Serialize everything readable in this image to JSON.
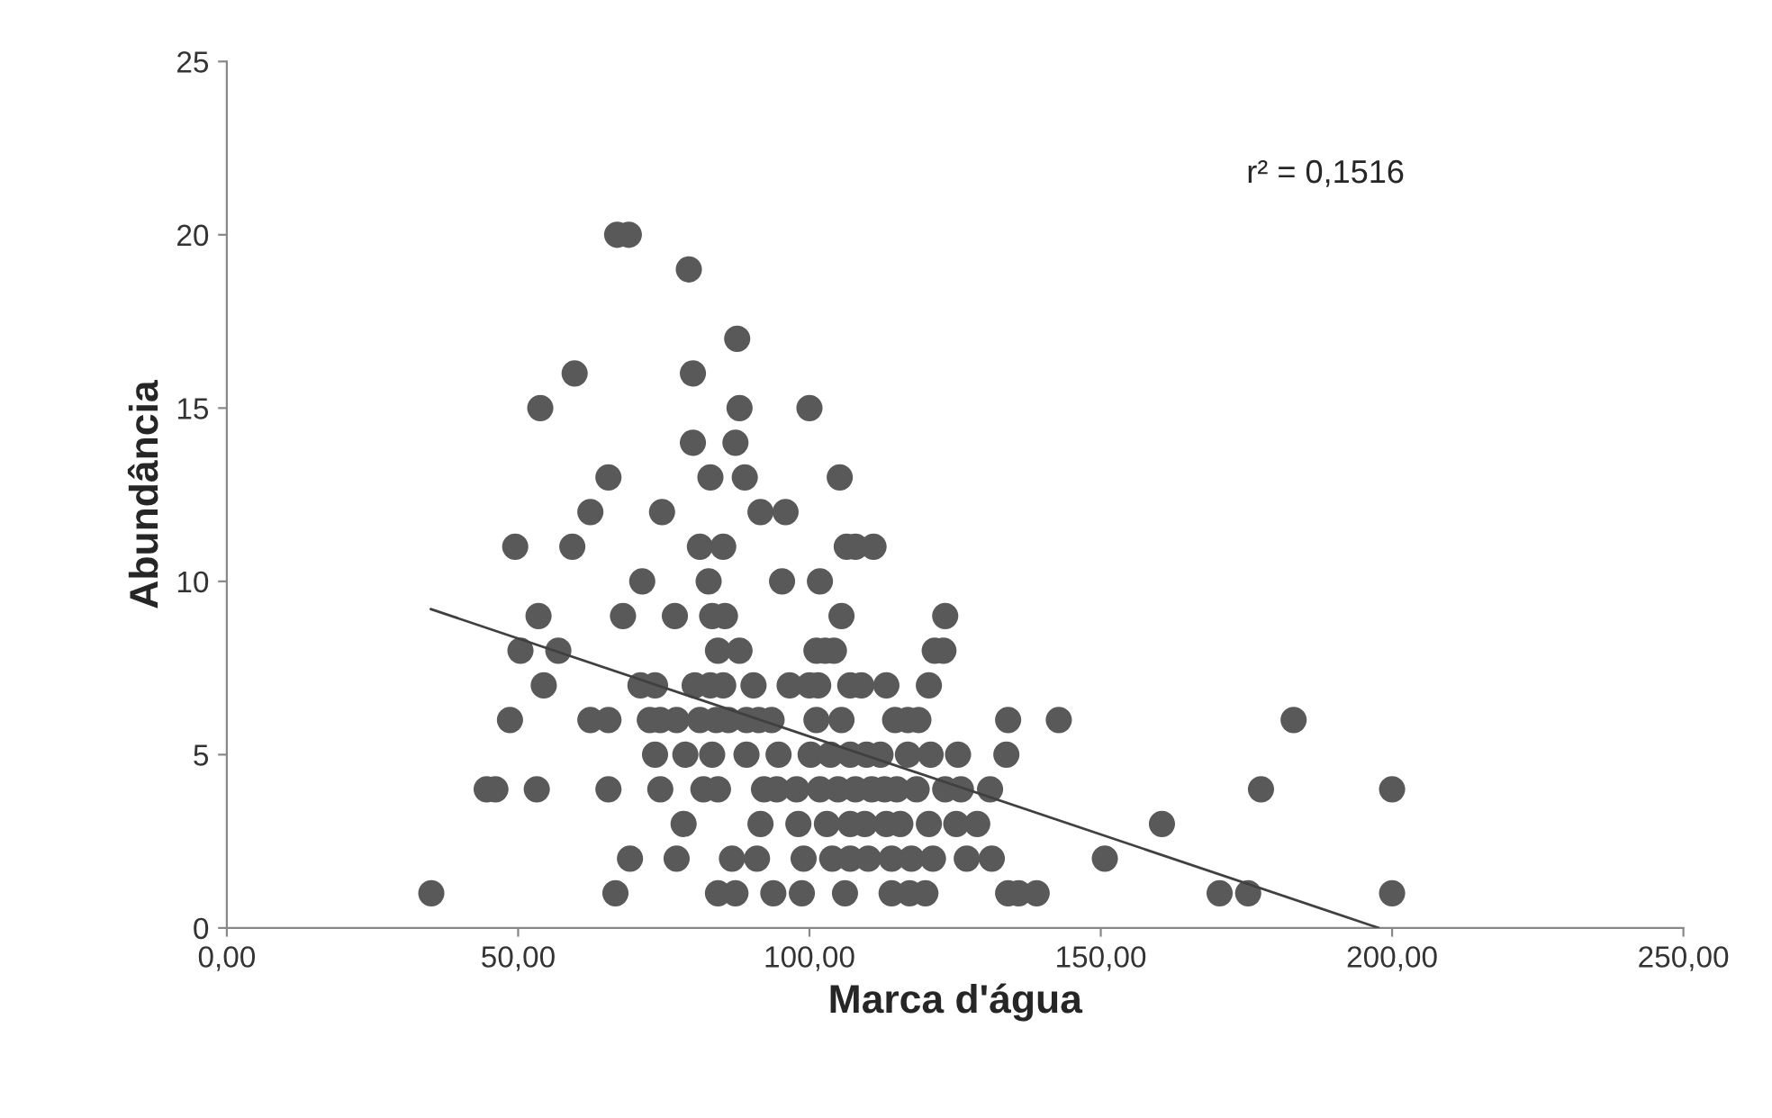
{
  "chart_data": {
    "type": "scatter",
    "xlabel": "Marca d'água",
    "ylabel": "Abundância",
    "annotations": [
      "r² = 0,1516"
    ],
    "xlim": [
      0,
      250
    ],
    "ylim": [
      0,
      25
    ],
    "xticks": [
      {
        "value": 0,
        "label": "0,00"
      },
      {
        "value": 50,
        "label": "50,00"
      },
      {
        "value": 100,
        "label": "100,00"
      },
      {
        "value": 150,
        "label": "150,00"
      },
      {
        "value": 200,
        "label": "200,00"
      },
      {
        "value": 250,
        "label": "250,00"
      }
    ],
    "yticks": [
      0,
      5,
      10,
      15,
      20,
      25
    ],
    "grid": false,
    "legend": false,
    "marker": "circle",
    "series": [
      {
        "color": "#595959",
        "x": [
          67,
          69,
          79.3,
          87.6,
          59.7,
          80,
          53.8,
          88,
          100,
          80,
          87.3,
          65.5,
          83,
          88.9,
          105.2,
          62.4,
          74.7,
          91.6,
          95.9,
          49.5,
          59.3,
          81.2,
          85.2,
          106.4,
          107.9,
          111,
          71.3,
          82.7,
          95.3,
          101.8,
          53.5,
          68,
          76.9,
          83.3,
          85.5,
          105.5,
          123.3,
          50.4,
          56.9,
          84.3,
          88,
          101.2,
          102.7,
          104.2,
          121.5,
          123,
          54.4,
          71,
          73.5,
          80.3,
          83,
          85.2,
          90.4,
          96.6,
          100,
          101.5,
          107,
          108.9,
          113.2,
          120.5,
          48.6,
          62.4,
          65.5,
          72.6,
          74.4,
          77.2,
          81.2,
          84,
          86.1,
          89.2,
          91.3,
          93.5,
          101.2,
          105.5,
          114.7,
          116.9,
          118.7,
          134.1,
          142.8,
          183.1,
          73.5,
          78.7,
          83.3,
          89.2,
          94.7,
          100.2,
          103.6,
          107,
          109.8,
          112.2,
          116.9,
          120.8,
          125.5,
          133.8,
          44.6,
          46.1,
          53.2,
          65.5,
          74.4,
          81.8,
          84.3,
          92.2,
          94.4,
          97.8,
          101.8,
          104.9,
          107.9,
          110.7,
          112.9,
          115,
          118.4,
          123.3,
          126,
          131,
          177.5,
          200,
          78.4,
          91.6,
          98.1,
          103,
          107,
          109.5,
          113.2,
          115.6,
          120.5,
          125.2,
          128.8,
          160.5,
          69.2,
          77.2,
          86.7,
          91,
          99,
          103.9,
          107,
          110.1,
          114.1,
          117.5,
          121.2,
          127,
          131.3,
          150.7,
          35.1,
          66.7,
          84.3,
          87.3,
          93.8,
          98.7,
          106.1,
          114.1,
          117.2,
          119.9,
          134.1,
          135.9,
          139,
          170.4,
          175.3,
          200
        ],
        "values": [
          20,
          20,
          19,
          17,
          16,
          16,
          15,
          15,
          15,
          14,
          14,
          13,
          13,
          13,
          13,
          12,
          12,
          12,
          12,
          11,
          11,
          11,
          11,
          11,
          11,
          11,
          10,
          10,
          10,
          10,
          9,
          9,
          9,
          9,
          9,
          9,
          9,
          8,
          8,
          8,
          8,
          8,
          8,
          8,
          8,
          8,
          7,
          7,
          7,
          7,
          7,
          7,
          7,
          7,
          7,
          7,
          7,
          7,
          7,
          7,
          6,
          6,
          6,
          6,
          6,
          6,
          6,
          6,
          6,
          6,
          6,
          6,
          6,
          6,
          6,
          6,
          6,
          6,
          6,
          6,
          5,
          5,
          5,
          5,
          5,
          5,
          5,
          5,
          5,
          5,
          5,
          5,
          5,
          5,
          4,
          4,
          4,
          4,
          4,
          4,
          4,
          4,
          4,
          4,
          4,
          4,
          4,
          4,
          4,
          4,
          4,
          4,
          4,
          4,
          4,
          4,
          3,
          3,
          3,
          3,
          3,
          3,
          3,
          3,
          3,
          3,
          3,
          3,
          2,
          2,
          2,
          2,
          2,
          2,
          2,
          2,
          2,
          2,
          2,
          2,
          2,
          2,
          1,
          1,
          1,
          1,
          1,
          1,
          1,
          1,
          1,
          1,
          1,
          1,
          1,
          1,
          1,
          1
        ]
      },
      {
        "type": "line",
        "color": "#404040",
        "marker": "none",
        "line_style": "solid",
        "x": [
          35,
          197.7
        ],
        "values": [
          9.2,
          0
        ]
      }
    ]
  }
}
